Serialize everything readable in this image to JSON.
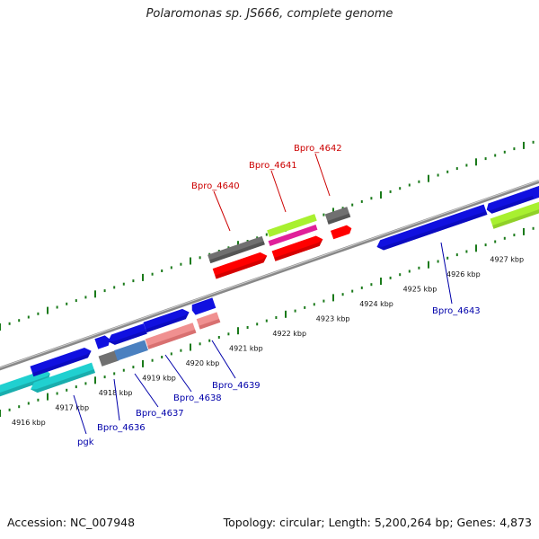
{
  "title": "Polaromonas sp. JS666, complete genome",
  "footer": {
    "accession": "Accession: NC_007948",
    "topology": "Topology: circular; Length: 5,200,264 bp; Genes: 4,873"
  },
  "colors": {
    "backbone": "#8a8a8a",
    "tick": "#1a7a1a",
    "label_forward": "#cc0000",
    "label_reverse": "#0000aa",
    "blue": "#1010e0",
    "red": "#ff0000",
    "cyan": "#20d0d0",
    "gray": "#707070",
    "pink": "#f09090",
    "lime": "#a8f030",
    "magenta": "#e0209a",
    "steel": "#4a80c0"
  },
  "tick_labels": [
    "4916 kbp",
    "4917 kbp",
    "4918 kbp",
    "4919 kbp",
    "4920 kbp",
    "4921 kbp",
    "4922 kbp",
    "4923 kbp",
    "4924 kbp",
    "4925 kbp",
    "4926 kbp",
    "4927 kbp"
  ],
  "gene_labels": {
    "forward": [
      "Bpro_4640",
      "Bpro_4641",
      "Bpro_4642"
    ],
    "reverse": [
      "pgk",
      "Bpro_4636",
      "Bpro_4637",
      "Bpro_4638",
      "Bpro_4639",
      "Bpro_4643"
    ]
  }
}
